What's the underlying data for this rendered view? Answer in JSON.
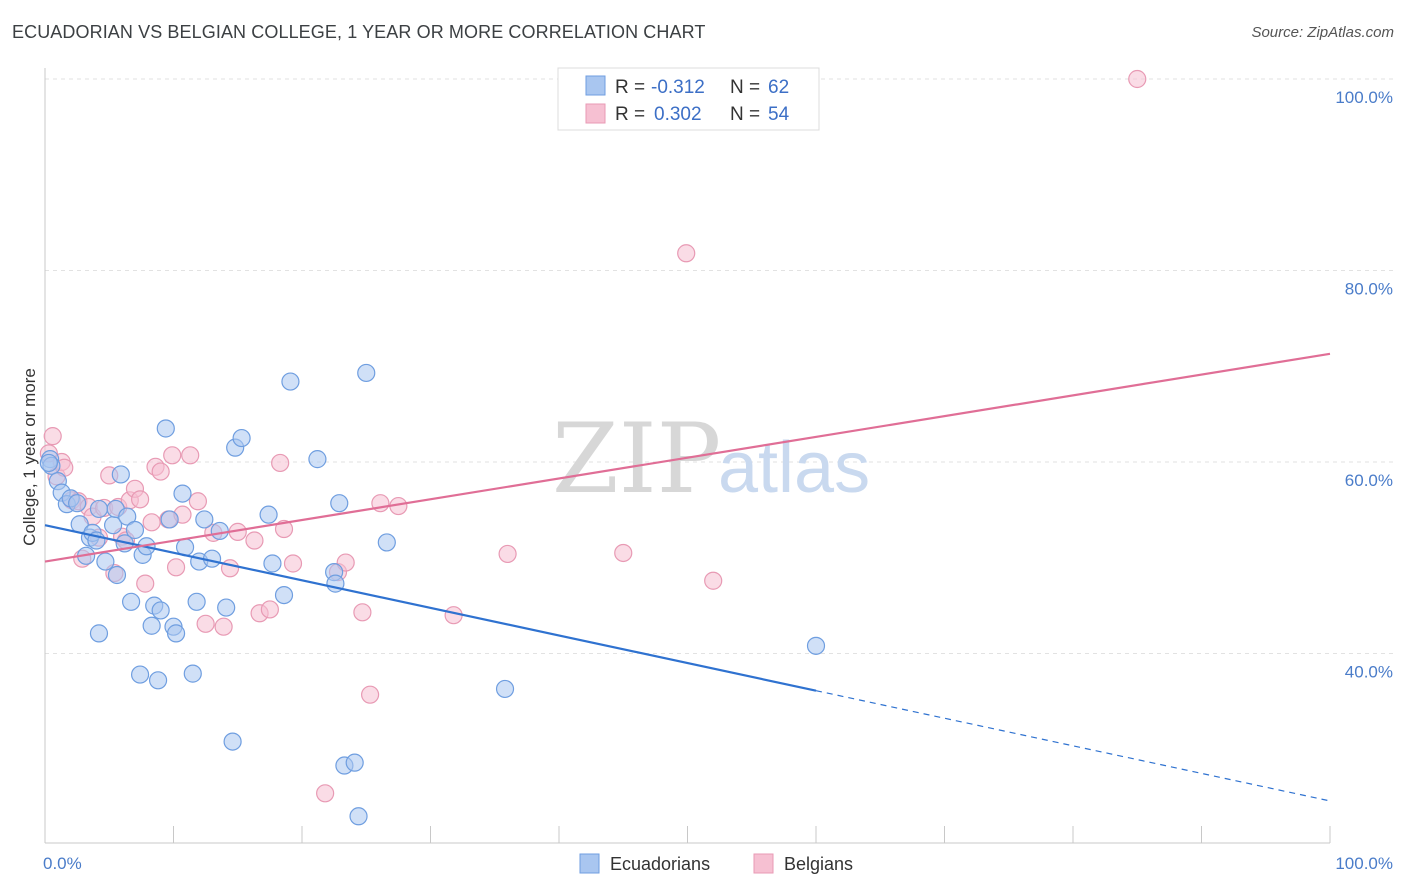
{
  "header": {
    "title": "ECUADORIAN VS BELGIAN COLLEGE, 1 YEAR OR MORE CORRELATION CHART",
    "source": "Source: ZipAtlas.com"
  },
  "watermark": {
    "zip": "ZIP",
    "atlas": "atlas"
  },
  "legend": {
    "rows": [
      {
        "r_label": "R =",
        "r_value": "-0.312",
        "n_label": "N =",
        "n_value": "62",
        "color": "#7fa8e6"
      },
      {
        "r_label": "R =",
        "r_value": "0.302",
        "n_label": "N =",
        "n_value": "54",
        "color": "#f0a3bd"
      }
    ]
  },
  "colors": {
    "ecuadorian_fill": "#a9c6f0",
    "ecuadorian_stroke": "#6f9ee0",
    "ecuadorian_line": "#2f72d0",
    "belgian_fill": "#f6c0d2",
    "belgian_stroke": "#e89ab4",
    "belgian_line": "#e06e96"
  },
  "chart_data": {
    "type": "scatter",
    "title": "ECUADORIAN VS BELGIAN COLLEGE, 1 YEAR OR MORE CORRELATION CHART",
    "xlabel": "",
    "ylabel": "College, 1 year or more",
    "xlim": [
      0,
      100
    ],
    "ylim": [
      22,
      102
    ],
    "x_tick_labels": [
      "0.0%",
      "100.0%"
    ],
    "y_ticks": [
      40,
      60,
      80,
      100
    ],
    "y_tick_labels": [
      "40.0%",
      "60.0%",
      "80.0%",
      "100.0%"
    ],
    "grid": true,
    "legend_position": "top-center",
    "series": [
      {
        "name": "Ecuadorians",
        "color": "#7fa8e6",
        "trend": {
          "x_start": 0,
          "y_start": 53.4,
          "x_end": 100,
          "y_end": 24.6,
          "solid_until_x": 60
        },
        "points": [
          [
            0.4,
            60.3
          ],
          [
            0.5,
            59.6
          ],
          [
            1.0,
            58.0
          ],
          [
            1.3,
            56.8
          ],
          [
            1.7,
            55.6
          ],
          [
            2.0,
            56.2
          ],
          [
            2.5,
            55.7
          ],
          [
            2.7,
            53.5
          ],
          [
            3.2,
            50.2
          ],
          [
            3.5,
            52.1
          ],
          [
            3.7,
            52.6
          ],
          [
            4.0,
            51.8
          ],
          [
            4.2,
            55.1
          ],
          [
            4.2,
            42.1
          ],
          [
            4.7,
            49.6
          ],
          [
            5.3,
            53.4
          ],
          [
            5.5,
            55.1
          ],
          [
            5.6,
            48.2
          ],
          [
            5.9,
            58.7
          ],
          [
            6.2,
            51.5
          ],
          [
            6.4,
            54.3
          ],
          [
            6.7,
            45.4
          ],
          [
            7.0,
            52.9
          ],
          [
            7.4,
            37.8
          ],
          [
            7.6,
            50.3
          ],
          [
            7.9,
            51.2
          ],
          [
            8.3,
            42.9
          ],
          [
            8.5,
            45.0
          ],
          [
            8.8,
            37.2
          ],
          [
            9.0,
            44.5
          ],
          [
            9.4,
            63.5
          ],
          [
            9.7,
            54.0
          ],
          [
            10.0,
            42.8
          ],
          [
            10.2,
            42.1
          ],
          [
            10.7,
            56.7
          ],
          [
            10.9,
            51.1
          ],
          [
            11.5,
            37.9
          ],
          [
            11.8,
            45.4
          ],
          [
            12.0,
            49.6
          ],
          [
            12.4,
            54.0
          ],
          [
            13.0,
            49.9
          ],
          [
            13.6,
            52.8
          ],
          [
            14.1,
            44.8
          ],
          [
            14.6,
            30.8
          ],
          [
            14.8,
            61.5
          ],
          [
            15.3,
            62.5
          ],
          [
            17.4,
            54.5
          ],
          [
            17.7,
            49.4
          ],
          [
            18.6,
            46.1
          ],
          [
            19.1,
            68.4
          ],
          [
            21.2,
            60.3
          ],
          [
            22.5,
            48.5
          ],
          [
            22.6,
            47.3
          ],
          [
            22.9,
            55.7
          ],
          [
            23.3,
            28.3
          ],
          [
            24.1,
            28.6
          ],
          [
            24.4,
            23.0
          ],
          [
            25.0,
            69.3
          ],
          [
            26.6,
            51.6
          ],
          [
            35.8,
            36.3
          ],
          [
            60.0,
            40.8
          ],
          [
            0.3,
            59.9
          ]
        ]
      },
      {
        "name": "Belgians",
        "color": "#f0a3bd",
        "trend": {
          "x_start": 0,
          "y_start": 49.6,
          "x_end": 100,
          "y_end": 71.3
        },
        "points": [
          [
            0.3,
            60.9
          ],
          [
            0.6,
            62.7
          ],
          [
            0.9,
            58.5
          ],
          [
            1.3,
            60.0
          ],
          [
            1.5,
            59.4
          ],
          [
            2.1,
            56.0
          ],
          [
            2.6,
            55.9
          ],
          [
            2.9,
            49.9
          ],
          [
            3.4,
            55.3
          ],
          [
            3.7,
            54.3
          ],
          [
            4.2,
            52.1
          ],
          [
            4.6,
            55.2
          ],
          [
            5.0,
            58.6
          ],
          [
            5.4,
            48.4
          ],
          [
            5.7,
            55.3
          ],
          [
            6.0,
            52.2
          ],
          [
            6.3,
            51.8
          ],
          [
            6.6,
            56.0
          ],
          [
            7.0,
            57.2
          ],
          [
            7.4,
            56.1
          ],
          [
            7.8,
            47.3
          ],
          [
            8.3,
            53.7
          ],
          [
            8.6,
            59.5
          ],
          [
            9.0,
            59.0
          ],
          [
            9.6,
            54.0
          ],
          [
            9.9,
            60.7
          ],
          [
            10.2,
            49.0
          ],
          [
            10.7,
            54.5
          ],
          [
            11.3,
            60.7
          ],
          [
            11.9,
            55.9
          ],
          [
            12.5,
            43.1
          ],
          [
            13.1,
            52.6
          ],
          [
            13.9,
            42.8
          ],
          [
            14.4,
            48.9
          ],
          [
            15.0,
            52.7
          ],
          [
            16.3,
            51.8
          ],
          [
            16.7,
            44.2
          ],
          [
            17.5,
            44.6
          ],
          [
            18.3,
            59.9
          ],
          [
            18.6,
            53.0
          ],
          [
            19.3,
            49.4
          ],
          [
            21.8,
            25.4
          ],
          [
            22.8,
            48.5
          ],
          [
            23.4,
            49.5
          ],
          [
            24.7,
            44.3
          ],
          [
            25.3,
            35.7
          ],
          [
            26.1,
            55.7
          ],
          [
            27.5,
            55.4
          ],
          [
            31.8,
            44.0
          ],
          [
            36.0,
            50.4
          ],
          [
            45.0,
            50.5
          ],
          [
            52.0,
            47.6
          ],
          [
            49.9,
            81.8
          ],
          [
            85.0,
            100.0
          ]
        ]
      }
    ]
  }
}
